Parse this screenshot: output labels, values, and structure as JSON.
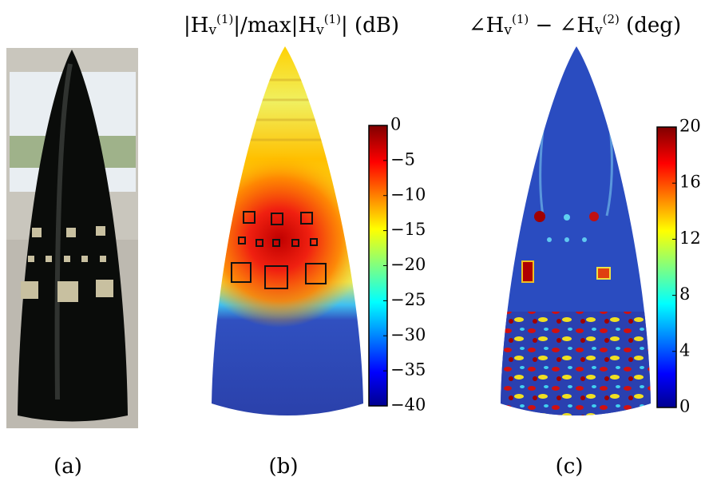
{
  "panels": [
    {
      "label": "(a)"
    },
    {
      "label": "(b)",
      "title": [
        {
          "text": "|H",
          "style": "normal"
        },
        {
          "text": "v",
          "style": "sub"
        },
        {
          "text": "(1)",
          "style": "sup"
        },
        {
          "text": "|/max|H",
          "style": "normal"
        },
        {
          "text": "v",
          "style": "sub"
        },
        {
          "text": "(1)",
          "style": "sup"
        },
        {
          "text": "| (dB)",
          "style": "normal"
        }
      ],
      "colorbar": {
        "lim": [
          -40,
          0
        ],
        "ticks": [
          {
            "value": 0,
            "label": "0"
          },
          {
            "value": -5,
            "label": "−5"
          },
          {
            "value": -10,
            "label": "−10"
          },
          {
            "value": -15,
            "label": "−15"
          },
          {
            "value": -20,
            "label": "−20"
          },
          {
            "value": -25,
            "label": "−25"
          },
          {
            "value": -30,
            "label": "−30"
          },
          {
            "value": -35,
            "label": "−35"
          },
          {
            "value": -40,
            "label": "−40"
          }
        ]
      }
    },
    {
      "label": "(c)",
      "title": [
        {
          "text": "∠H",
          "style": "normal"
        },
        {
          "text": "v",
          "style": "sub"
        },
        {
          "text": "(1)",
          "style": "sup"
        },
        {
          "text": " − ∠H",
          "style": "normal"
        },
        {
          "text": "v",
          "style": "sub"
        },
        {
          "text": "(2)",
          "style": "sup"
        },
        {
          "text": " (deg)",
          "style": "normal"
        }
      ],
      "colorbar": {
        "lim": [
          0,
          20
        ],
        "ticks": [
          0,
          4,
          8,
          12,
          16,
          20
        ]
      }
    }
  ]
}
